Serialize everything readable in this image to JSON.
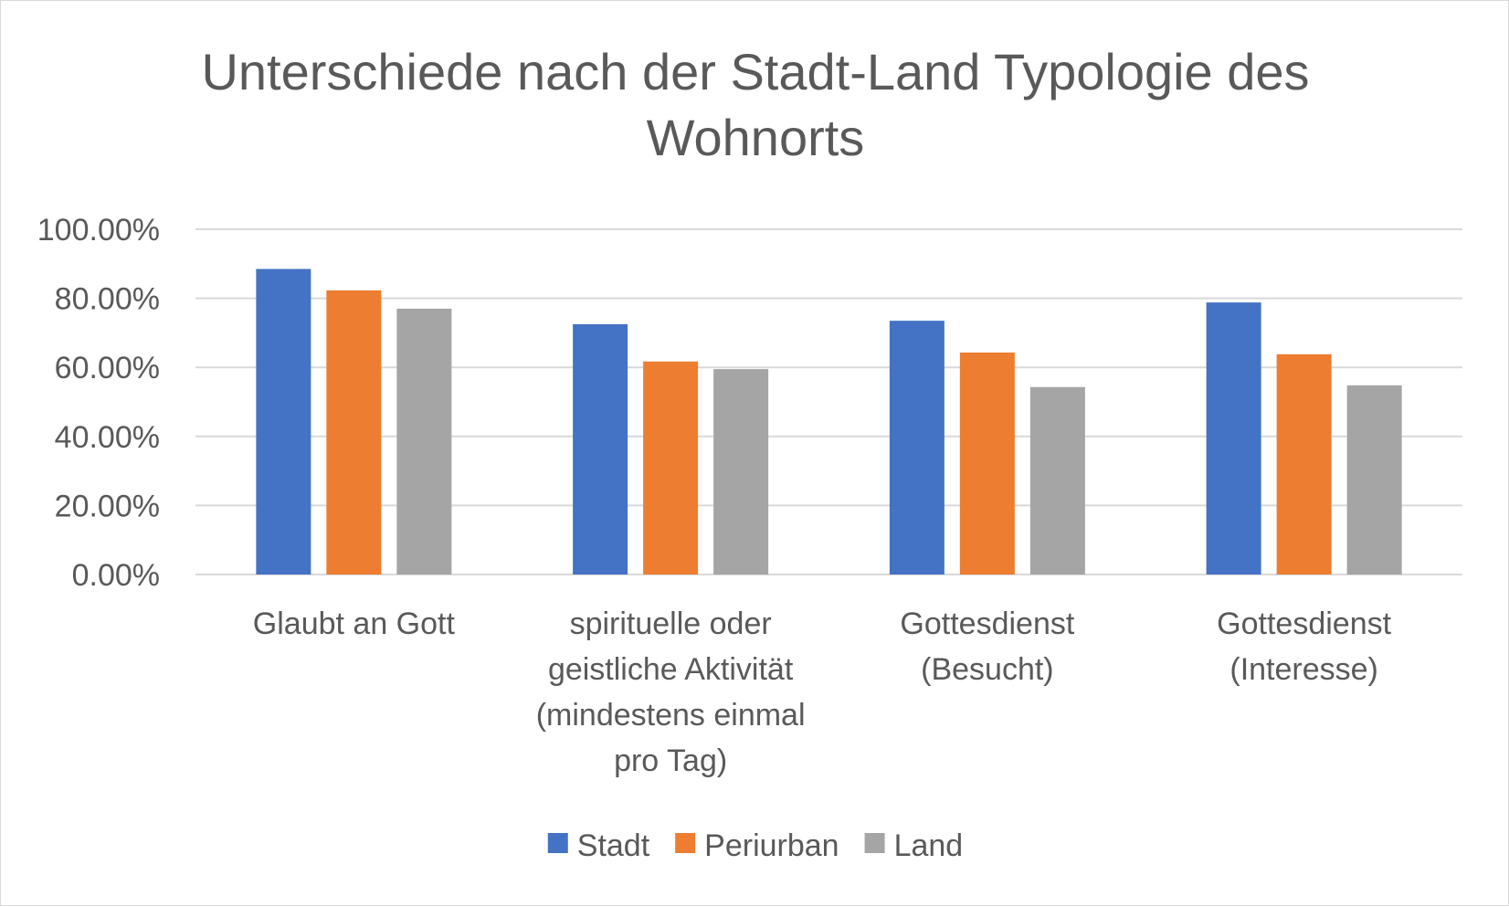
{
  "chart_data": {
    "type": "bar",
    "title": [
      "Unterschiede nach der Stadt-Land Typologie des",
      "Wohnorts"
    ],
    "categories": [
      [
        "Glaubt an Gott"
      ],
      [
        "spirituelle oder",
        "geistliche Aktivität",
        "(mindestens einmal",
        "pro Tag)"
      ],
      [
        "Gottesdienst",
        "(Besucht)"
      ],
      [
        "Gottesdienst",
        "(Interesse)"
      ]
    ],
    "series": [
      {
        "name": "Stadt",
        "color": "#4472c4",
        "values": [
          88.5,
          72.5,
          73.5,
          78.8
        ]
      },
      {
        "name": "Periurban",
        "color": "#ed7d31",
        "values": [
          82.3,
          61.7,
          64.3,
          63.8
        ]
      },
      {
        "name": "Land",
        "color": "#a5a5a5",
        "values": [
          77.0,
          59.5,
          54.3,
          54.8
        ]
      }
    ],
    "ylim": [
      0,
      100
    ],
    "yticks": [
      "0.00%",
      "20.00%",
      "40.00%",
      "60.00%",
      "80.00%",
      "100.00%"
    ],
    "ytick_values": [
      0,
      20,
      40,
      60,
      80,
      100
    ],
    "grid": true,
    "legend_position": "bottom"
  }
}
